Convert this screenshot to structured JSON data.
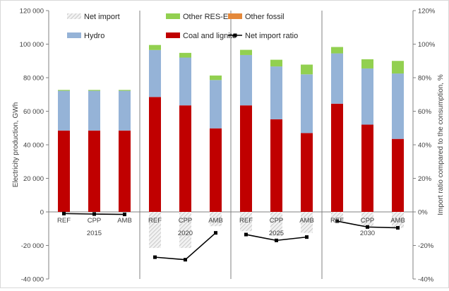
{
  "chart_data": {
    "type": "bar",
    "stacked": true,
    "groups": [
      "2015",
      "2020",
      "2025",
      "2030"
    ],
    "scenarios": [
      "REF",
      "CPP",
      "AMB"
    ],
    "y_left_label": "Electricity production, GWh",
    "y_right_label": "Import ratio compared to the consumption, %",
    "y_left_range": [
      -40000,
      120000
    ],
    "y_left_ticks": [
      {
        "value": -40000,
        "label": "-40 000"
      },
      {
        "value": -20000,
        "label": "-20 000"
      },
      {
        "value": 0,
        "label": "0"
      },
      {
        "value": 20000,
        "label": "20 000"
      },
      {
        "value": 40000,
        "label": "40 000"
      },
      {
        "value": 60000,
        "label": "60 000"
      },
      {
        "value": 80000,
        "label": "80 000"
      },
      {
        "value": 100000,
        "label": "100 000"
      },
      {
        "value": 120000,
        "label": "120 000"
      }
    ],
    "y_right_range": [
      -40,
      120
    ],
    "y_right_ticks": [
      {
        "value": -40,
        "label": "-40%"
      },
      {
        "value": -20,
        "label": "-20%"
      },
      {
        "value": 0,
        "label": "0%"
      },
      {
        "value": 20,
        "label": "20%"
      },
      {
        "value": 40,
        "label": "40%"
      },
      {
        "value": 60,
        "label": "60%"
      },
      {
        "value": 80,
        "label": "80%"
      },
      {
        "value": 100,
        "label": "100%"
      },
      {
        "value": 120,
        "label": "120%"
      }
    ],
    "legend": [
      {
        "name": "Net import",
        "kind": "hatch"
      },
      {
        "name": "Other RES-E",
        "kind": "fill",
        "color": "#92d050"
      },
      {
        "name": "Other fossil",
        "kind": "fill",
        "color": "#e4883a"
      },
      {
        "name": "Hydro",
        "kind": "fill",
        "color": "#95b3d7"
      },
      {
        "name": "Coal and lignite",
        "kind": "fill",
        "color": "#c00000"
      },
      {
        "name": "Net import ratio",
        "kind": "line",
        "color": "#000000"
      }
    ],
    "bars": [
      {
        "group": "2015",
        "scenario": "REF",
        "net_import": 0,
        "coal_lignite": 48500,
        "hydro": 23700,
        "other_fossil": 0,
        "other_res": 500
      },
      {
        "group": "2015",
        "scenario": "CPP",
        "net_import": 0,
        "coal_lignite": 48500,
        "hydro": 23700,
        "other_fossil": 0,
        "other_res": 500
      },
      {
        "group": "2015",
        "scenario": "AMB",
        "net_import": 0,
        "coal_lignite": 48500,
        "hydro": 23700,
        "other_fossil": 0,
        "other_res": 500
      },
      {
        "group": "2020",
        "scenario": "REF",
        "net_import": -21500,
        "coal_lignite": 68500,
        "hydro": 28000,
        "other_fossil": 0,
        "other_res": 3000
      },
      {
        "group": "2020",
        "scenario": "CPP",
        "net_import": -21500,
        "coal_lignite": 63500,
        "hydro": 28500,
        "other_fossil": 0,
        "other_res": 2800
      },
      {
        "group": "2020",
        "scenario": "AMB",
        "net_import": -8500,
        "coal_lignite": 49800,
        "hydro": 28800,
        "other_fossil": 0,
        "other_res": 2700
      },
      {
        "group": "2025",
        "scenario": "REF",
        "net_import": -11500,
        "coal_lignite": 63500,
        "hydro": 30000,
        "other_fossil": 0,
        "other_res": 3100
      },
      {
        "group": "2025",
        "scenario": "CPP",
        "net_import": -14500,
        "coal_lignite": 55200,
        "hydro": 31500,
        "other_fossil": 0,
        "other_res": 4000
      },
      {
        "group": "2025",
        "scenario": "AMB",
        "net_import": -12500,
        "coal_lignite": 47000,
        "hydro": 35000,
        "other_fossil": 0,
        "other_res": 5800
      },
      {
        "group": "2030",
        "scenario": "REF",
        "net_import": -5500,
        "coal_lignite": 64500,
        "hydro": 30000,
        "other_fossil": 0,
        "other_res": 3800
      },
      {
        "group": "2030",
        "scenario": "CPP",
        "net_import": -8500,
        "coal_lignite": 52000,
        "hydro": 33500,
        "other_fossil": 0,
        "other_res": 5500
      },
      {
        "group": "2030",
        "scenario": "AMB",
        "net_import": -9500,
        "coal_lignite": 43500,
        "hydro": 39000,
        "other_fossil": 0,
        "other_res": 7500
      }
    ],
    "net_import_ratio_pct": [
      {
        "group": "2015",
        "points": [
          -1,
          -1.3,
          -1.5
        ]
      },
      {
        "group": "2020",
        "points": [
          -27,
          -28.5,
          -12.5
        ]
      },
      {
        "group": "2025",
        "points": [
          -13.5,
          -17,
          -15
        ]
      },
      {
        "group": "2030",
        "points": [
          -5.5,
          -9,
          -9.5
        ]
      }
    ],
    "grid": false,
    "legend_position": "top"
  }
}
